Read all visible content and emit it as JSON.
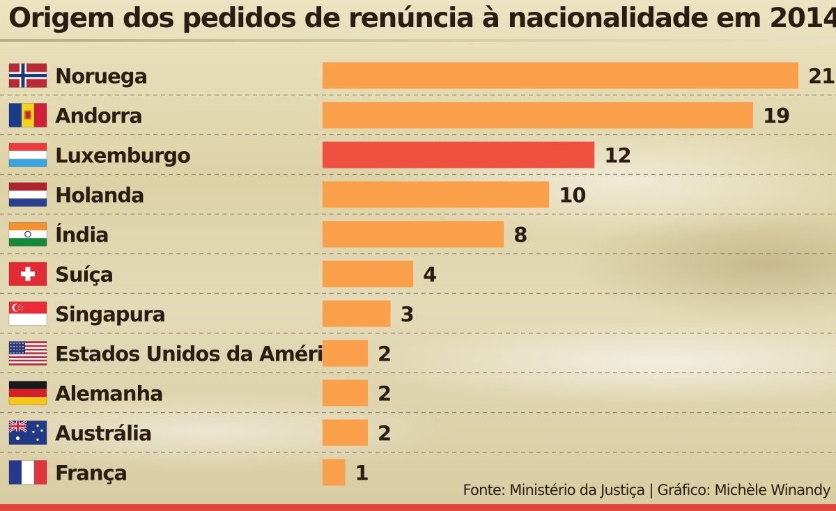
{
  "chart_data": {
    "type": "bar",
    "orientation": "horizontal",
    "title": "Origem dos pedidos de renúncia à nacionalidade em 2014",
    "categories": [
      "Noruega",
      "Andorra",
      "Luxemburgo",
      "Holanda",
      "Índia",
      "Suíça",
      "Singapura",
      "Estados Unidos da América",
      "Alemanha",
      "Austrália",
      "França"
    ],
    "flags": [
      "norway-flag-icon",
      "andorra-flag-icon",
      "luxembourg-flag-icon",
      "netherlands-flag-icon",
      "india-flag-icon",
      "switzerland-flag-icon",
      "singapore-flag-icon",
      "usa-flag-icon",
      "germany-flag-icon",
      "australia-flag-icon",
      "france-flag-icon"
    ],
    "values": [
      21,
      19,
      12,
      10,
      8,
      4,
      3,
      2,
      2,
      2,
      1
    ],
    "highlight": "Luxemburgo",
    "xlim": [
      0,
      21
    ],
    "grid": true,
    "source": "Fonte: Ministério da Justiça | Gráfico: Michèle Winandy",
    "colors": {
      "bar": "#fba04a",
      "highlight": "#ef5040",
      "text": "#2b1d12",
      "footer_bar": "#e2483a"
    }
  }
}
